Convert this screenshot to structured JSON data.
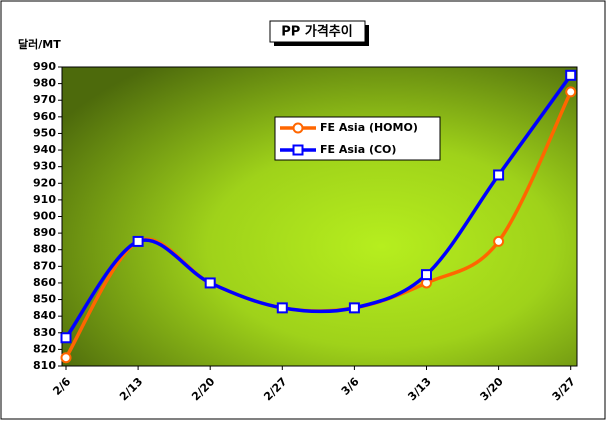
{
  "chart_data": {
    "type": "line",
    "title": "PP 가격추이",
    "y_label": "달러/MT",
    "categories": [
      "2/6",
      "2/13",
      "2/20",
      "2/27",
      "3/6",
      "3/13",
      "3/20",
      "3/27"
    ],
    "series": [
      {
        "name": "FE Asia (HOMO)",
        "color": "#ff6600",
        "marker": "circle",
        "values": [
          815,
          885,
          860,
          845,
          845,
          860,
          885,
          975
        ]
      },
      {
        "name": "FE Asia (CO)",
        "color": "#0000ff",
        "marker": "square",
        "values": [
          827,
          885,
          860,
          845,
          845,
          865,
          925,
          985
        ]
      }
    ],
    "ylim": [
      810,
      990
    ],
    "yticks": [
      810,
      820,
      830,
      840,
      850,
      860,
      870,
      880,
      890,
      900,
      910,
      920,
      930,
      940,
      950,
      960,
      970,
      980,
      990
    ],
    "smooth": true
  }
}
